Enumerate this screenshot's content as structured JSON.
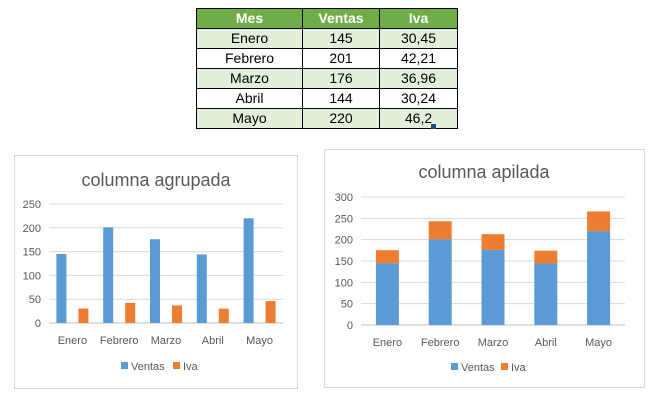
{
  "table": {
    "headers": [
      "Mes",
      "Ventas",
      "Iva"
    ],
    "rows": [
      [
        "Enero",
        "145",
        "30,45"
      ],
      [
        "Febrero",
        "201",
        "42,21"
      ],
      [
        "Marzo",
        "176",
        "36,96"
      ],
      [
        "Abril",
        "144",
        "30,24"
      ],
      [
        "Mayo",
        "220",
        "46,2"
      ]
    ]
  },
  "colors": {
    "ventas": "#5b9bd5",
    "iva": "#ed7d31",
    "header": "#70ad47",
    "row_fill": "#e2efda",
    "grid": "#d9d9d9"
  },
  "chart_data": [
    {
      "type": "bar",
      "mode": "grouped",
      "title": "columna agrupada",
      "categories": [
        "Enero",
        "Febrero",
        "Marzo",
        "Abril",
        "Mayo"
      ],
      "series": [
        {
          "name": "Ventas",
          "values": [
            145,
            201,
            176,
            144,
            220
          ]
        },
        {
          "name": "Iva",
          "values": [
            30.45,
            42.21,
            36.96,
            30.24,
            46.2
          ]
        }
      ],
      "yticks": [
        "0",
        "50",
        "100",
        "150",
        "200",
        "250"
      ],
      "ylim": [
        0,
        250
      ],
      "grid": true,
      "legend": "bottom"
    },
    {
      "type": "bar",
      "mode": "stacked",
      "title": "columna apilada",
      "categories": [
        "Enero",
        "Febrero",
        "Marzo",
        "Abril",
        "Mayo"
      ],
      "series": [
        {
          "name": "Ventas",
          "values": [
            145,
            201,
            176,
            144,
            220
          ]
        },
        {
          "name": "Iva",
          "values": [
            30.45,
            42.21,
            36.96,
            30.24,
            46.2
          ]
        }
      ],
      "yticks": [
        "0",
        "50",
        "100",
        "150",
        "200",
        "250",
        "300"
      ],
      "ylim": [
        0,
        300
      ],
      "grid": true,
      "legend": "bottom"
    }
  ]
}
